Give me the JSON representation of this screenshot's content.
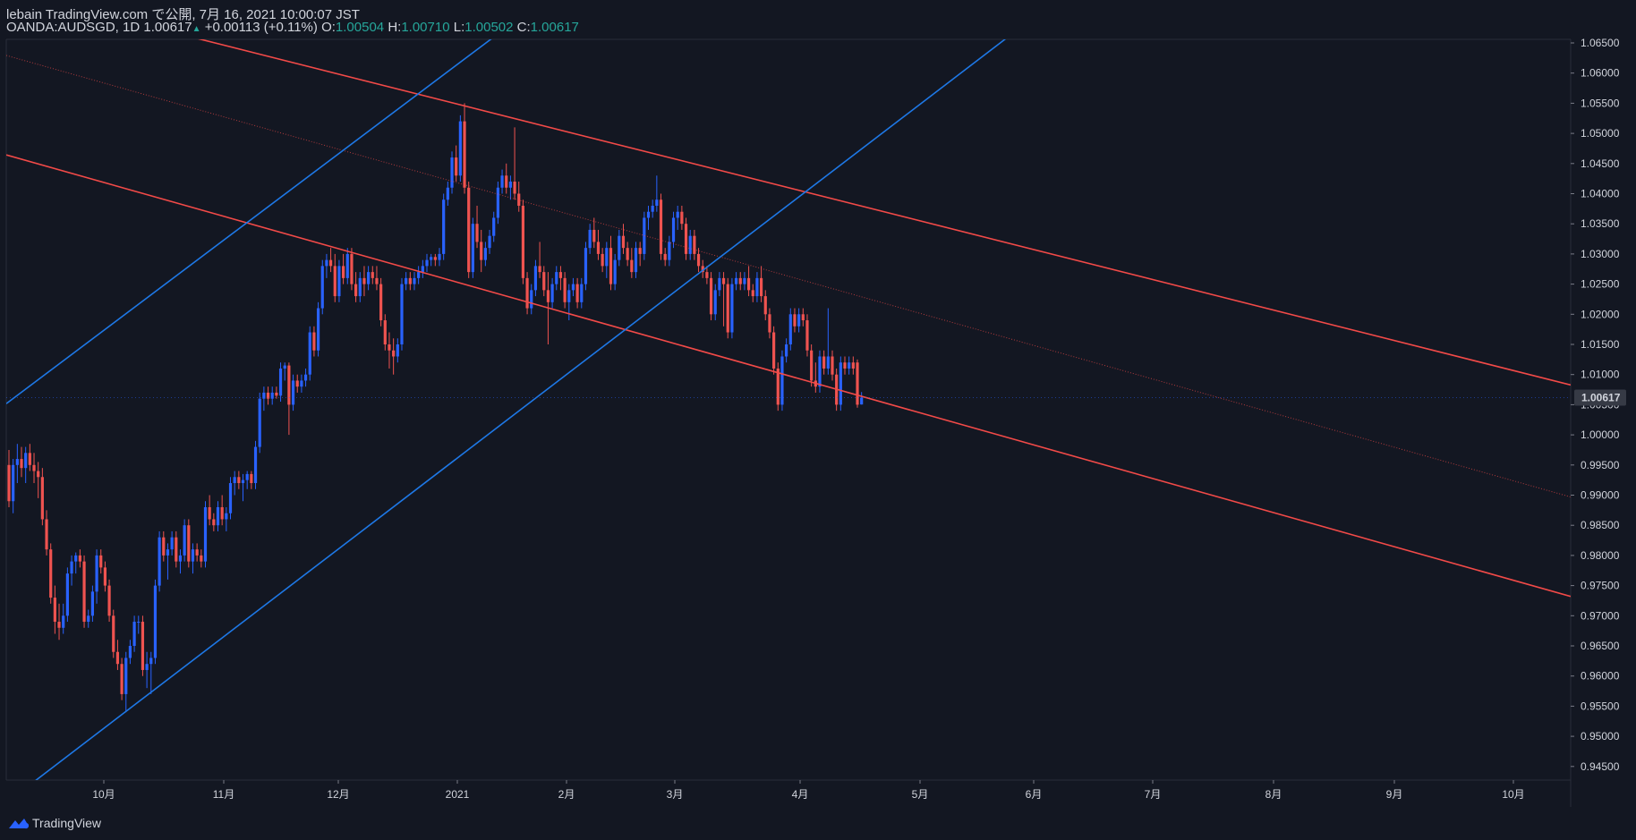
{
  "header": {
    "published_line": "lebain TradingView.com で公開, 7月 16, 2021 10:00:07 JST",
    "symbol_line": "OANDA:AUDSGD, 1D",
    "last": "1.00617",
    "change": "+0.00113 (+0.11%)",
    "o_label": "O:",
    "o_value": "1.00504",
    "h_label": "H:",
    "h_value": "1.00710",
    "l_label": "L:",
    "l_value": "1.00502",
    "c_label": "C:",
    "c_value": "1.00617"
  },
  "brand": {
    "name": "TradingView",
    "icon": "tradingview-cloud-icon"
  },
  "colors": {
    "background": "#131722",
    "up": "#2962ff",
    "down": "#ef5350",
    "channel_red": "#f24a48",
    "channel_blue": "#1e78e6",
    "axis_text": "#d1d4dc",
    "price_tag_bg": "#363a45",
    "header_up": "#26a69a"
  },
  "chart_data": {
    "type": "candlestick",
    "symbol": "OANDA:AUDSGD",
    "interval": "1D",
    "y_ticks": [
      "1.06500",
      "1.06000",
      "1.05500",
      "1.05000",
      "1.04500",
      "1.04000",
      "1.03500",
      "1.03000",
      "1.02500",
      "1.02000",
      "1.01500",
      "1.01000",
      "1.00500",
      "1.00000",
      "0.99500",
      "0.99000",
      "0.98500",
      "0.98000",
      "0.97500",
      "0.97000",
      "0.96500",
      "0.96000",
      "0.95500",
      "0.95000",
      "0.94500"
    ],
    "ylim": [
      0.943,
      1.0665
    ],
    "x_ticks": [
      "10月",
      "11月",
      "12月",
      "2021",
      "2月",
      "3月",
      "4月",
      "5月",
      "6月",
      "7月",
      "8月",
      "9月",
      "10月"
    ],
    "last_price_label": "1.00617",
    "candles": [
      [
        0.995,
        0.9975,
        0.988,
        0.989
      ],
      [
        0.989,
        0.996,
        0.987,
        0.995
      ],
      [
        0.995,
        0.9985,
        0.992,
        0.996
      ],
      [
        0.996,
        0.998,
        0.993,
        0.9945
      ],
      [
        0.9945,
        0.998,
        0.992,
        0.997
      ],
      [
        0.997,
        0.9985,
        0.994,
        0.995
      ],
      [
        0.995,
        0.997,
        0.992,
        0.994
      ],
      [
        0.994,
        0.9955,
        0.9895,
        0.993
      ],
      [
        0.993,
        0.9945,
        0.985,
        0.986
      ],
      [
        0.986,
        0.9875,
        0.98,
        0.981
      ],
      [
        0.981,
        0.982,
        0.972,
        0.973
      ],
      [
        0.973,
        0.975,
        0.967,
        0.969
      ],
      [
        0.969,
        0.972,
        0.966,
        0.968
      ],
      [
        0.968,
        0.972,
        0.967,
        0.97
      ],
      [
        0.97,
        0.978,
        0.969,
        0.977
      ],
      [
        0.977,
        0.98,
        0.975,
        0.979
      ],
      [
        0.979,
        0.9805,
        0.977,
        0.98
      ],
      [
        0.98,
        0.981,
        0.978,
        0.979
      ],
      [
        0.979,
        0.98,
        0.968,
        0.969
      ],
      [
        0.969,
        0.971,
        0.968,
        0.97
      ],
      [
        0.97,
        0.975,
        0.969,
        0.974
      ],
      [
        0.974,
        0.981,
        0.972,
        0.98
      ],
      [
        0.98,
        0.981,
        0.977,
        0.978
      ],
      [
        0.978,
        0.979,
        0.974,
        0.975
      ],
      [
        0.975,
        0.976,
        0.969,
        0.97
      ],
      [
        0.97,
        0.971,
        0.963,
        0.964
      ],
      [
        0.964,
        0.966,
        0.961,
        0.962
      ],
      [
        0.962,
        0.963,
        0.956,
        0.957
      ],
      [
        0.957,
        0.964,
        0.954,
        0.963
      ],
      [
        0.963,
        0.966,
        0.962,
        0.965
      ],
      [
        0.965,
        0.97,
        0.964,
        0.969
      ],
      [
        0.969,
        0.97,
        0.967,
        0.969
      ],
      [
        0.969,
        0.97,
        0.96,
        0.961
      ],
      [
        0.961,
        0.964,
        0.958,
        0.962
      ],
      [
        0.962,
        0.964,
        0.957,
        0.963
      ],
      [
        0.963,
        0.976,
        0.962,
        0.975
      ],
      [
        0.975,
        0.984,
        0.974,
        0.983
      ],
      [
        0.983,
        0.984,
        0.979,
        0.98
      ],
      [
        0.98,
        0.982,
        0.976,
        0.981
      ],
      [
        0.981,
        0.984,
        0.98,
        0.983
      ],
      [
        0.983,
        0.984,
        0.978,
        0.979
      ],
      [
        0.979,
        0.981,
        0.977,
        0.98
      ],
      [
        0.98,
        0.986,
        0.979,
        0.985
      ],
      [
        0.985,
        0.986,
        0.978,
        0.979
      ],
      [
        0.979,
        0.982,
        0.977,
        0.981
      ],
      [
        0.981,
        0.982,
        0.979,
        0.98
      ],
      [
        0.98,
        0.981,
        0.978,
        0.979
      ],
      [
        0.979,
        0.989,
        0.978,
        0.988
      ],
      [
        0.988,
        0.99,
        0.985,
        0.986
      ],
      [
        0.986,
        0.987,
        0.984,
        0.985
      ],
      [
        0.985,
        0.989,
        0.984,
        0.988
      ],
      [
        0.988,
        0.99,
        0.985,
        0.986
      ],
      [
        0.986,
        0.988,
        0.984,
        0.987
      ],
      [
        0.987,
        0.993,
        0.986,
        0.992
      ],
      [
        0.992,
        0.994,
        0.99,
        0.993
      ],
      [
        0.993,
        0.994,
        0.991,
        0.992
      ],
      [
        0.992,
        0.9935,
        0.989,
        0.9925
      ],
      [
        0.9925,
        0.994,
        0.991,
        0.9935
      ],
      [
        0.9935,
        0.994,
        0.991,
        0.992
      ],
      [
        0.992,
        0.999,
        0.991,
        0.998
      ],
      [
        0.998,
        1.007,
        0.997,
        1.006
      ],
      [
        1.006,
        1.008,
        1.004,
        1.007
      ],
      [
        1.007,
        1.008,
        1.005,
        1.006
      ],
      [
        1.006,
        1.008,
        1.005,
        1.007
      ],
      [
        1.007,
        1.008,
        1.006,
        1.0065
      ],
      [
        1.0065,
        1.012,
        1.0055,
        1.011
      ],
      [
        1.011,
        1.012,
        1.009,
        1.0115
      ],
      [
        1.0115,
        1.012,
        1.0,
        1.005
      ],
      [
        1.005,
        1.01,
        1.004,
        1.009
      ],
      [
        1.009,
        1.01,
        1.007,
        1.008
      ],
      [
        1.008,
        1.01,
        1.007,
        1.009
      ],
      [
        1.009,
        1.011,
        1.008,
        1.01
      ],
      [
        1.01,
        1.018,
        1.009,
        1.017
      ],
      [
        1.017,
        1.018,
        1.013,
        1.014
      ],
      [
        1.014,
        1.022,
        1.013,
        1.021
      ],
      [
        1.021,
        1.029,
        1.02,
        1.028
      ],
      [
        1.028,
        1.03,
        1.026,
        1.029
      ],
      [
        1.029,
        1.031,
        1.027,
        1.028
      ],
      [
        1.028,
        1.03,
        1.022,
        1.023
      ],
      [
        1.023,
        1.029,
        1.022,
        1.028
      ],
      [
        1.028,
        1.03,
        1.025,
        1.026
      ],
      [
        1.026,
        1.031,
        1.025,
        1.03
      ],
      [
        1.03,
        1.031,
        1.024,
        1.025
      ],
      [
        1.025,
        1.027,
        1.022,
        1.023
      ],
      [
        1.023,
        1.027,
        1.022,
        1.026
      ],
      [
        1.026,
        1.028,
        1.023,
        1.025
      ],
      [
        1.025,
        1.028,
        1.024,
        1.027
      ],
      [
        1.027,
        1.028,
        1.025,
        1.026
      ],
      [
        1.026,
        1.028,
        1.024,
        1.025
      ],
      [
        1.025,
        1.026,
        1.018,
        1.019
      ],
      [
        1.019,
        1.02,
        1.014,
        1.015
      ],
      [
        1.015,
        1.017,
        1.011,
        1.014
      ],
      [
        1.014,
        1.016,
        1.01,
        1.013
      ],
      [
        1.013,
        1.016,
        1.012,
        1.015
      ],
      [
        1.015,
        1.026,
        1.014,
        1.025
      ],
      [
        1.025,
        1.027,
        1.024,
        1.026
      ],
      [
        1.026,
        1.027,
        1.024,
        1.025
      ],
      [
        1.025,
        1.027,
        1.024,
        1.026
      ],
      [
        1.026,
        1.028,
        1.025,
        1.027
      ],
      [
        1.027,
        1.029,
        1.026,
        1.028
      ],
      [
        1.028,
        1.03,
        1.027,
        1.029
      ],
      [
        1.029,
        1.03,
        1.028,
        1.0295
      ],
      [
        1.0295,
        1.03,
        1.028,
        1.029
      ],
      [
        1.029,
        1.031,
        1.028,
        1.03
      ],
      [
        1.03,
        1.04,
        1.029,
        1.039
      ],
      [
        1.039,
        1.042,
        1.038,
        1.041
      ],
      [
        1.041,
        1.047,
        1.04,
        1.046
      ],
      [
        1.046,
        1.048,
        1.042,
        1.043
      ],
      [
        1.043,
        1.053,
        1.042,
        1.052
      ],
      [
        1.052,
        1.055,
        1.04,
        1.041
      ],
      [
        1.041,
        1.042,
        1.026,
        1.027
      ],
      [
        1.027,
        1.036,
        1.026,
        1.035
      ],
      [
        1.035,
        1.038,
        1.031,
        1.032
      ],
      [
        1.032,
        1.034,
        1.027,
        1.029
      ],
      [
        1.029,
        1.032,
        1.028,
        1.031
      ],
      [
        1.031,
        1.034,
        1.03,
        1.033
      ],
      [
        1.033,
        1.037,
        1.032,
        1.036
      ],
      [
        1.036,
        1.042,
        1.035,
        1.041
      ],
      [
        1.041,
        1.044,
        1.04,
        1.043
      ],
      [
        1.043,
        1.045,
        1.04,
        1.041
      ],
      [
        1.041,
        1.043,
        1.039,
        1.042
      ],
      [
        1.042,
        1.051,
        1.039,
        1.04
      ],
      [
        1.04,
        1.042,
        1.037,
        1.038
      ],
      [
        1.038,
        1.039,
        1.025,
        1.026
      ],
      [
        1.026,
        1.027,
        1.02,
        1.021
      ],
      [
        1.021,
        1.025,
        1.02,
        1.024
      ],
      [
        1.024,
        1.029,
        1.023,
        1.028
      ],
      [
        1.028,
        1.032,
        1.026,
        1.027
      ],
      [
        1.027,
        1.028,
        1.023,
        1.024
      ],
      [
        1.024,
        1.027,
        1.015,
        1.022
      ],
      [
        1.022,
        1.026,
        1.021,
        1.025
      ],
      [
        1.025,
        1.028,
        1.024,
        1.027
      ],
      [
        1.027,
        1.028,
        1.024,
        1.026
      ],
      [
        1.026,
        1.027,
        1.021,
        1.022
      ],
      [
        1.022,
        1.025,
        1.019,
        1.024
      ],
      [
        1.024,
        1.026,
        1.023,
        1.025
      ],
      [
        1.025,
        1.026,
        1.021,
        1.022
      ],
      [
        1.022,
        1.026,
        1.021,
        1.025
      ],
      [
        1.025,
        1.032,
        1.024,
        1.031
      ],
      [
        1.031,
        1.035,
        1.03,
        1.034
      ],
      [
        1.034,
        1.036,
        1.031,
        1.032
      ],
      [
        1.032,
        1.034,
        1.029,
        1.03
      ],
      [
        1.03,
        1.031,
        1.027,
        1.028
      ],
      [
        1.028,
        1.032,
        1.026,
        1.031
      ],
      [
        1.031,
        1.033,
        1.024,
        1.025
      ],
      [
        1.025,
        1.03,
        1.024,
        1.029
      ],
      [
        1.029,
        1.034,
        1.028,
        1.033
      ],
      [
        1.033,
        1.035,
        1.03,
        1.031
      ],
      [
        1.031,
        1.032,
        1.028,
        1.029
      ],
      [
        1.029,
        1.031,
        1.026,
        1.027
      ],
      [
        1.027,
        1.032,
        1.026,
        1.031
      ],
      [
        1.031,
        1.032,
        1.028,
        1.03
      ],
      [
        1.03,
        1.037,
        1.029,
        1.036
      ],
      [
        1.036,
        1.038,
        1.034,
        1.037
      ],
      [
        1.037,
        1.039,
        1.036,
        1.038
      ],
      [
        1.038,
        1.043,
        1.037,
        1.039
      ],
      [
        1.039,
        1.04,
        1.029,
        1.03
      ],
      [
        1.03,
        1.031,
        1.028,
        1.029
      ],
      [
        1.029,
        1.033,
        1.028,
        1.032
      ],
      [
        1.032,
        1.037,
        1.031,
        1.036
      ],
      [
        1.036,
        1.038,
        1.034,
        1.037
      ],
      [
        1.037,
        1.038,
        1.034,
        1.035
      ],
      [
        1.035,
        1.036,
        1.029,
        1.03
      ],
      [
        1.03,
        1.034,
        1.029,
        1.033
      ],
      [
        1.033,
        1.034,
        1.029,
        1.03
      ],
      [
        1.03,
        1.031,
        1.027,
        1.028
      ],
      [
        1.028,
        1.029,
        1.026,
        1.027
      ],
      [
        1.027,
        1.028,
        1.025,
        1.026
      ],
      [
        1.026,
        1.027,
        1.019,
        1.02
      ],
      [
        1.02,
        1.025,
        1.019,
        1.024
      ],
      [
        1.024,
        1.027,
        1.023,
        1.026
      ],
      [
        1.026,
        1.027,
        1.018,
        1.025
      ],
      [
        1.025,
        1.026,
        1.016,
        1.017
      ],
      [
        1.017,
        1.026,
        1.016,
        1.025
      ],
      [
        1.025,
        1.027,
        1.024,
        1.026
      ],
      [
        1.026,
        1.027,
        1.024,
        1.025
      ],
      [
        1.025,
        1.027,
        1.024,
        1.026
      ],
      [
        1.026,
        1.028,
        1.023,
        1.024
      ],
      [
        1.024,
        1.025,
        1.022,
        1.023
      ],
      [
        1.023,
        1.027,
        1.022,
        1.026
      ],
      [
        1.026,
        1.028,
        1.022,
        1.023
      ],
      [
        1.023,
        1.024,
        1.019,
        1.02
      ],
      [
        1.02,
        1.021,
        1.016,
        1.017
      ],
      [
        1.017,
        1.018,
        1.01,
        1.011
      ],
      [
        1.011,
        1.012,
        1.004,
        1.005
      ],
      [
        1.005,
        1.014,
        1.004,
        1.013
      ],
      [
        1.013,
        1.016,
        1.012,
        1.015
      ],
      [
        1.015,
        1.021,
        1.014,
        1.02
      ],
      [
        1.02,
        1.021,
        1.017,
        1.018
      ],
      [
        1.018,
        1.021,
        1.017,
        1.02
      ],
      [
        1.02,
        1.021,
        1.018,
        1.019
      ],
      [
        1.019,
        1.02,
        1.013,
        1.014
      ],
      [
        1.014,
        1.015,
        1.008,
        1.009
      ],
      [
        1.009,
        1.012,
        1.007,
        1.008
      ],
      [
        1.008,
        1.014,
        1.007,
        1.013
      ],
      [
        1.013,
        1.014,
        1.01,
        1.011
      ],
      [
        1.011,
        1.021,
        1.01,
        1.013
      ],
      [
        1.013,
        1.014,
        1.009,
        1.01
      ],
      [
        1.01,
        1.011,
        1.004,
        1.005
      ],
      [
        1.005,
        1.013,
        1.004,
        1.012
      ],
      [
        1.012,
        1.013,
        1.01,
        1.011
      ],
      [
        1.011,
        1.013,
        1.01,
        1.012
      ],
      [
        1.012,
        1.013,
        1.01,
        1.011
      ],
      [
        1.012,
        1.0125,
        1.0045,
        1.005
      ],
      [
        1.00504,
        1.0071,
        1.00502,
        1.00617
      ]
    ],
    "channel_lines": [
      {
        "name": "red upper",
        "color": "#f24a48",
        "style": "solid",
        "p1": [
          35,
          1.0675
        ],
        "p2": [
          298,
          1.0215
        ]
      },
      {
        "name": "red middle",
        "color": "#f24a48",
        "style": "dotted",
        "p1": [
          0,
          1.0628
        ],
        "p2": [
          298,
          1.0045
        ]
      },
      {
        "name": "red lower",
        "color": "#f24a48",
        "style": "solid",
        "p1": [
          0,
          1.0463
        ],
        "p2": [
          298,
          0.988
        ]
      },
      {
        "name": "blue upper",
        "color": "#1e78e6",
        "style": "solid",
        "p1": [
          0,
          1.0055
        ],
        "p2": [
          117,
          1.0665
        ]
      },
      {
        "name": "blue lower",
        "color": "#1e78e6",
        "style": "solid",
        "p1": [
          7,
          0.943
        ],
        "p2": [
          240,
          1.0665
        ]
      }
    ]
  }
}
